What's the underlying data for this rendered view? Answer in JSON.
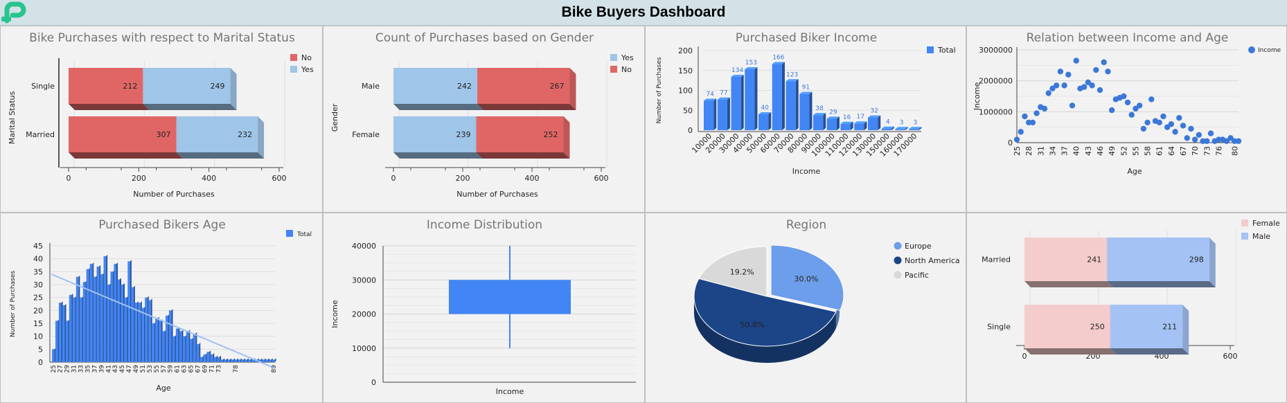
{
  "header": {
    "title": "Bike Buyers Dashboard"
  },
  "colors": {
    "red": "#e06666",
    "lightblue": "#9fc5e8",
    "blue": "#4285f4",
    "navy": "#1c4587",
    "gray": "#d9d9d9",
    "pink": "#f4cccc",
    "periwinkle": "#a4c2f4"
  },
  "chart_data": [
    {
      "id": "marital",
      "type": "bar",
      "orientation": "horizontal",
      "stacked": true,
      "title": "Bike Purchases with respect to Marital Status",
      "xlabel": "Number of Purchases",
      "ylabel": "Marital Status",
      "categories": [
        "Single",
        "Married"
      ],
      "series": [
        {
          "name": "No",
          "values": [
            212,
            307
          ],
          "color": "#e06666"
        },
        {
          "name": "Yes",
          "values": [
            249,
            232
          ],
          "color": "#9fc5e8"
        }
      ],
      "xlim": [
        0,
        600
      ],
      "xticks": [
        "0",
        "200",
        "400",
        "600"
      ],
      "legend": "top-right"
    },
    {
      "id": "gender",
      "type": "bar",
      "orientation": "horizontal",
      "stacked": true,
      "title": "Count of Purchases based on Gender",
      "xlabel": "Number of Purchases",
      "ylabel": "Gender",
      "categories": [
        "Male",
        "Female"
      ],
      "series": [
        {
          "name": "Yes",
          "values": [
            242,
            239
          ],
          "color": "#9fc5e8"
        },
        {
          "name": "No",
          "values": [
            267,
            252
          ],
          "color": "#e06666"
        }
      ],
      "xlim": [
        0,
        600
      ],
      "xticks": [
        "0",
        "200",
        "400",
        "600"
      ],
      "legend": "top-right"
    },
    {
      "id": "income",
      "type": "bar",
      "title": "Purchased Biker Income",
      "xlabel": "Income",
      "ylabel": "Number of Purchases",
      "categories": [
        "10000",
        "20000",
        "30000",
        "40000",
        "50000",
        "60000",
        "70000",
        "80000",
        "90000",
        "100000",
        "110000",
        "120000",
        "130000",
        "150000",
        "160000",
        "170000"
      ],
      "series": [
        {
          "name": "Total",
          "values": [
            74,
            77,
            134,
            153,
            40,
            166,
            123,
            91,
            38,
            29,
            16,
            17,
            32,
            4,
            3,
            3
          ],
          "color": "#4285f4"
        }
      ],
      "ylim": [
        0,
        200
      ],
      "yticks": [
        "0",
        "50",
        "100",
        "150",
        "200"
      ],
      "legend": "top-right"
    },
    {
      "id": "income_age",
      "type": "scatter",
      "title": "Relation between Income and Age",
      "xlabel": "Age",
      "ylabel": "Income",
      "series": [
        {
          "name": "Income",
          "color": "#3b78d8",
          "points": [
            [
              25,
              100000
            ],
            [
              26,
              350000
            ],
            [
              27,
              850000
            ],
            [
              28,
              650000
            ],
            [
              29,
              650000
            ],
            [
              30,
              950000
            ],
            [
              31,
              1150000
            ],
            [
              32,
              1100000
            ],
            [
              33,
              1600000
            ],
            [
              34,
              1750000
            ],
            [
              35,
              1850000
            ],
            [
              36,
              2300000
            ],
            [
              37,
              1850000
            ],
            [
              38,
              2200000
            ],
            [
              39,
              1200000
            ],
            [
              40,
              2650000
            ],
            [
              41,
              1750000
            ],
            [
              42,
              1800000
            ],
            [
              43,
              1950000
            ],
            [
              44,
              1850000
            ],
            [
              45,
              2350000
            ],
            [
              46,
              1700000
            ],
            [
              47,
              2600000
            ],
            [
              48,
              2300000
            ],
            [
              49,
              1050000
            ],
            [
              50,
              1400000
            ],
            [
              51,
              1450000
            ],
            [
              52,
              1500000
            ],
            [
              53,
              1300000
            ],
            [
              54,
              900000
            ],
            [
              55,
              1100000
            ],
            [
              56,
              1200000
            ],
            [
              57,
              450000
            ],
            [
              58,
              650000
            ],
            [
              59,
              1400000
            ],
            [
              60,
              700000
            ],
            [
              61,
              650000
            ],
            [
              62,
              850000
            ],
            [
              63,
              500000
            ],
            [
              64,
              600000
            ],
            [
              65,
              350000
            ],
            [
              66,
              800000
            ],
            [
              67,
              550000
            ],
            [
              68,
              150000
            ],
            [
              69,
              450000
            ],
            [
              70,
              100000
            ],
            [
              71,
              250000
            ],
            [
              72,
              50000
            ],
            [
              73,
              50000
            ],
            [
              74,
              300000
            ],
            [
              75,
              50000
            ],
            [
              76,
              100000
            ],
            [
              77,
              100000
            ],
            [
              78,
              50000
            ],
            [
              79,
              150000
            ],
            [
              80,
              50000
            ],
            [
              81,
              50000
            ]
          ]
        }
      ],
      "xticks": [
        "25",
        "28",
        "31",
        "34",
        "37",
        "40",
        "43",
        "46",
        "49",
        "52",
        "55",
        "58",
        "61",
        "64",
        "67",
        "70",
        "73",
        "76",
        "80"
      ],
      "ylim": [
        0,
        3000000
      ],
      "yticks": [
        "0",
        "1000000",
        "2000000",
        "3000000"
      ],
      "legend": "top-right"
    },
    {
      "id": "age",
      "type": "bar",
      "title": "Purchased Bikers Age",
      "xlabel": "Age",
      "ylabel": "Number of Purchases",
      "trendline": true,
      "categories": [
        "25",
        "26",
        "27",
        "28",
        "29",
        "30",
        "31",
        "32",
        "33",
        "34",
        "35",
        "36",
        "37",
        "38",
        "39",
        "40",
        "41",
        "42",
        "43",
        "44",
        "45",
        "46",
        "47",
        "48",
        "49",
        "50",
        "51",
        "52",
        "53",
        "54",
        "55",
        "56",
        "57",
        "58",
        "59",
        "60",
        "61",
        "62",
        "63",
        "64",
        "65",
        "66",
        "67",
        "68",
        "69",
        "70",
        "71",
        "72",
        "73",
        "74",
        "75",
        "76",
        "77",
        "78",
        "79",
        "80",
        "81",
        "82",
        "83",
        "84",
        "85",
        "86",
        "87",
        "88",
        "89"
      ],
      "series": [
        {
          "name": "Total",
          "values": [
            5,
            16,
            23,
            22,
            16,
            26,
            25,
            33,
            25,
            31,
            36,
            38,
            33,
            37,
            34,
            41,
            30,
            35,
            38,
            32,
            30,
            25,
            39,
            29,
            23,
            23,
            21,
            25,
            24,
            15,
            17,
            16,
            12,
            18,
            20,
            10,
            13,
            12,
            10,
            12,
            9,
            11,
            7,
            2,
            3,
            4,
            3,
            2,
            2,
            1,
            1,
            1,
            1,
            1,
            1,
            1,
            1,
            1,
            1,
            1,
            1,
            1,
            1,
            1,
            1
          ],
          "color": "#4285f4"
        }
      ],
      "xticks": [
        "25",
        "27",
        "29",
        "31",
        "33",
        "35",
        "37",
        "39",
        "41",
        "43",
        "45",
        "47",
        "49",
        "51",
        "53",
        "55",
        "57",
        "59",
        "61",
        "63",
        "65",
        "67",
        "69",
        "71",
        "73",
        "78",
        "89"
      ],
      "ylim": [
        0,
        45
      ],
      "yticks": [
        "0",
        "5",
        "10",
        "15",
        "20",
        "25",
        "30",
        "35",
        "40",
        "45"
      ],
      "legend": "top-right"
    },
    {
      "id": "income_dist",
      "type": "boxplot",
      "title": "Income Distribution",
      "xlabel": "Income",
      "ylabel": "Income",
      "box": {
        "whisker_low": 10000,
        "q1": 20000,
        "q3": 30000,
        "whisker_high": 40000
      },
      "ylim": [
        0,
        40000
      ],
      "yticks": [
        "0",
        "10000",
        "20000",
        "30000",
        "40000"
      ]
    },
    {
      "id": "region",
      "type": "pie",
      "title": "Region",
      "labels": [
        "Europe",
        "North America",
        "Pacific"
      ],
      "values": [
        30.0,
        50.8,
        19.2
      ],
      "value_labels": [
        "30.0%",
        "50.8%",
        "19.2%"
      ],
      "colors": [
        "#6d9eeb",
        "#1c4587",
        "#d9d9d9"
      ],
      "legend": "right"
    },
    {
      "id": "gender_marital",
      "type": "bar",
      "orientation": "horizontal",
      "stacked": true,
      "title": "",
      "categories": [
        "Married",
        "Single"
      ],
      "series": [
        {
          "name": "Female",
          "values": [
            241,
            250
          ],
          "color": "#f4cccc"
        },
        {
          "name": "Male",
          "values": [
            298,
            211
          ],
          "color": "#a4c2f4"
        }
      ],
      "xlim": [
        0,
        600
      ],
      "xticks": [
        "0",
        "200",
        "400",
        "600"
      ],
      "legend": "top-right"
    }
  ]
}
